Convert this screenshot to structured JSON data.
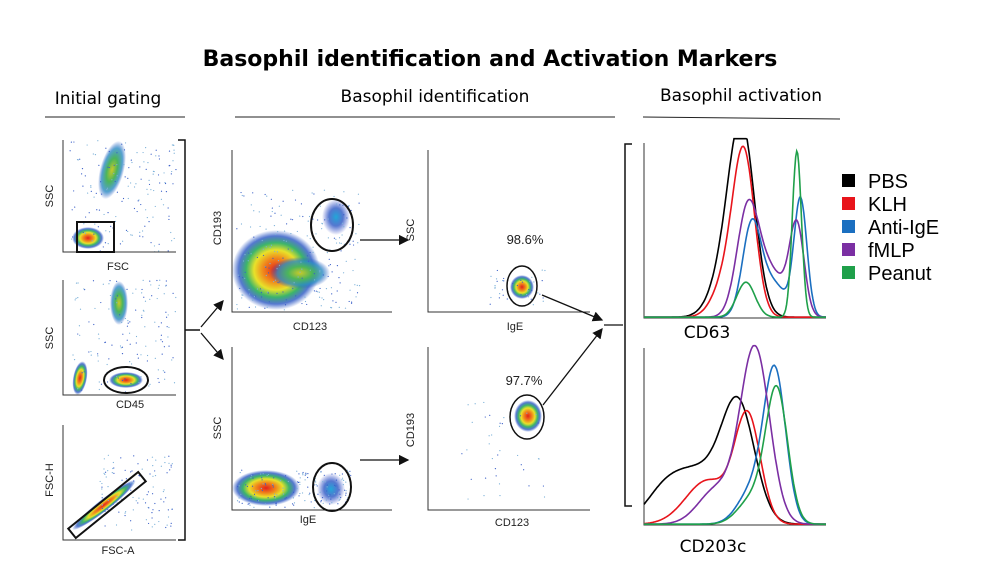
{
  "title": "Basophil identification and Activation Markers",
  "sections": {
    "initial": "Initial gating",
    "identification": "Basophil identification",
    "activation": "Basophil activation"
  },
  "initial_gating": [
    {
      "y_label": "SSC",
      "x_label": "FSC"
    },
    {
      "y_label": "SSC",
      "x_label": "CD45"
    },
    {
      "y_label": "FSC-H",
      "x_label": "FSC-A"
    }
  ],
  "identification": [
    {
      "y_label": "CD193",
      "x_label": "CD123"
    },
    {
      "y_label": "SSC",
      "x_label": "IgE"
    },
    {
      "y_label": "SSC",
      "x_label": "IgE",
      "percent": "98.6%"
    },
    {
      "y_label": "CD193",
      "x_label": "CD123",
      "percent": "97.7%"
    }
  ],
  "activation": {
    "histograms": [
      {
        "x_label": "CD63"
      },
      {
        "x_label": "CD203c"
      }
    ],
    "legend": [
      {
        "label": "PBS",
        "color": "#000000"
      },
      {
        "label": "KLH",
        "color": "#e8141b"
      },
      {
        "label": "Anti-IgE",
        "color": "#1b6fc0"
      },
      {
        "label": "fMLP",
        "color": "#7b2fa3"
      },
      {
        "label": "Peanut",
        "color": "#1fa04a"
      }
    ]
  }
}
